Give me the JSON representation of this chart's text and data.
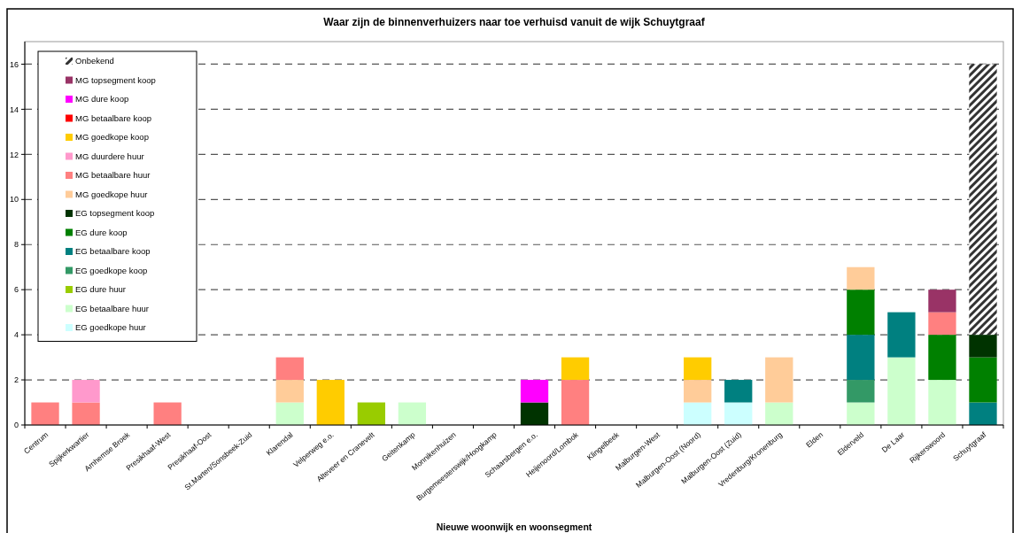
{
  "chart_data": {
    "type": "bar",
    "stacked": true,
    "title": "Waar zijn de binnenverhuizers naar toe verhuisd vanuit de wijk Schuytgraaf",
    "xlabel": "Nieuwe woonwijk en woonsegment",
    "categories": [
      "Centrum",
      "Spijkerkwartier",
      "Arnhemse Broek",
      "Presikhaaf-West",
      "Presikhaaf-Oost",
      "St.Marten/Sonsbeek-Zuid",
      "Klarendal",
      "Velperweg e.o.",
      "Alteveer en Cranevelt",
      "Geitenkamp",
      "Monnikenhuizen",
      "Burgemeesterswijk/Hoogkamp",
      "Schaarsbergen e.o.",
      "Heijenoord/Lombok",
      "Klingelbeek",
      "Malburgen-West",
      "Malburgen-Oost (Noord)",
      "Malburgen-Oost (Zuid)",
      "Vredenburg/Kronenburg",
      "Elden",
      "Elderveld",
      "De Laar",
      "Rijkerswoord",
      "Schuytgraaf"
    ],
    "series": [
      {
        "name": "EG goedkope huur",
        "color": "#ccffff",
        "values": [
          0,
          0,
          0,
          0,
          0,
          0,
          0,
          0,
          0,
          0,
          0,
          0,
          0,
          0,
          0,
          0,
          1,
          1,
          0,
          0,
          0,
          0,
          0,
          0
        ]
      },
      {
        "name": "EG betaalbare huur",
        "color": "#ccffcc",
        "values": [
          0,
          0,
          0,
          0,
          0,
          0,
          1,
          0,
          0,
          1,
          0,
          0,
          0,
          0,
          0,
          0,
          0,
          0,
          1,
          0,
          1,
          3,
          2,
          0
        ]
      },
      {
        "name": "EG dure huur",
        "color": "#99cc00",
        "values": [
          0,
          0,
          0,
          0,
          0,
          0,
          0,
          0,
          1,
          0,
          0,
          0,
          0,
          0,
          0,
          0,
          0,
          0,
          0,
          0,
          0,
          0,
          0,
          0
        ]
      },
      {
        "name": "EG goedkope koop",
        "color": "#339966",
        "values": [
          0,
          0,
          0,
          0,
          0,
          0,
          0,
          0,
          0,
          0,
          0,
          0,
          0,
          0,
          0,
          0,
          0,
          0,
          0,
          0,
          1,
          0,
          0,
          0
        ]
      },
      {
        "name": "EG betaalbare koop",
        "color": "#008080",
        "values": [
          0,
          0,
          0,
          0,
          0,
          0,
          0,
          0,
          0,
          0,
          0,
          0,
          0,
          0,
          0,
          0,
          0,
          1,
          0,
          0,
          2,
          2,
          0,
          1
        ]
      },
      {
        "name": "EG dure koop",
        "color": "#008000",
        "values": [
          0,
          0,
          0,
          0,
          0,
          0,
          0,
          0,
          0,
          0,
          0,
          0,
          0,
          0,
          0,
          0,
          0,
          0,
          0,
          0,
          2,
          0,
          2,
          2
        ]
      },
      {
        "name": "EG topsegment koop",
        "color": "#003300",
        "values": [
          0,
          0,
          0,
          0,
          0,
          0,
          0,
          0,
          0,
          0,
          0,
          0,
          1,
          0,
          0,
          0,
          0,
          0,
          0,
          0,
          0,
          0,
          0,
          1
        ]
      },
      {
        "name": "MG goedkope huur",
        "color": "#ffcc99",
        "values": [
          0,
          0,
          0,
          0,
          0,
          0,
          1,
          0,
          0,
          0,
          0,
          0,
          0,
          0,
          0,
          0,
          1,
          0,
          2,
          0,
          1,
          0,
          0,
          0
        ]
      },
      {
        "name": "MG betaalbare huur",
        "color": "#ff8080",
        "values": [
          1,
          1,
          0,
          1,
          0,
          0,
          1,
          0,
          0,
          0,
          0,
          0,
          0,
          2,
          0,
          0,
          0,
          0,
          0,
          0,
          0,
          0,
          1,
          0
        ]
      },
      {
        "name": "MG duurdere huur",
        "color": "#ff99cc",
        "values": [
          0,
          1,
          0,
          0,
          0,
          0,
          0,
          0,
          0,
          0,
          0,
          0,
          0,
          0,
          0,
          0,
          0,
          0,
          0,
          0,
          0,
          0,
          0,
          0
        ]
      },
      {
        "name": "MG goedkope koop",
        "color": "#ffcc00",
        "values": [
          0,
          0,
          0,
          0,
          0,
          0,
          0,
          2,
          0,
          0,
          0,
          0,
          0,
          1,
          0,
          0,
          1,
          0,
          0,
          0,
          0,
          0,
          0,
          0
        ]
      },
      {
        "name": "MG betaalbare koop",
        "color": "#ff0000",
        "values": [
          0,
          0,
          0,
          0,
          0,
          0,
          0,
          0,
          0,
          0,
          0,
          0,
          0,
          0,
          0,
          0,
          0,
          0,
          0,
          0,
          0,
          0,
          0,
          0
        ]
      },
      {
        "name": "MG dure koop",
        "color": "#ff00ff",
        "values": [
          0,
          0,
          0,
          0,
          0,
          0,
          0,
          0,
          0,
          0,
          0,
          0,
          1,
          0,
          0,
          0,
          0,
          0,
          0,
          0,
          0,
          0,
          0,
          0
        ]
      },
      {
        "name": "MG topsegment koop",
        "color": "#993366",
        "values": [
          0,
          0,
          0,
          0,
          0,
          0,
          0,
          0,
          0,
          0,
          0,
          0,
          0,
          0,
          0,
          0,
          0,
          0,
          0,
          0,
          0,
          0,
          1,
          0
        ]
      },
      {
        "name": "Onbekend",
        "color": "#333333",
        "values": [
          0,
          0,
          0,
          0,
          0,
          0,
          0,
          0,
          0,
          0,
          0,
          0,
          0,
          0,
          0,
          0,
          0,
          0,
          0,
          0,
          0,
          0,
          0,
          12
        ]
      }
    ],
    "ylim": [
      0,
      17
    ],
    "yticks": [
      0,
      2,
      4,
      6,
      8,
      10,
      12,
      14,
      16
    ],
    "grid": "y",
    "line_style": "dashed",
    "legend": "top left"
  }
}
